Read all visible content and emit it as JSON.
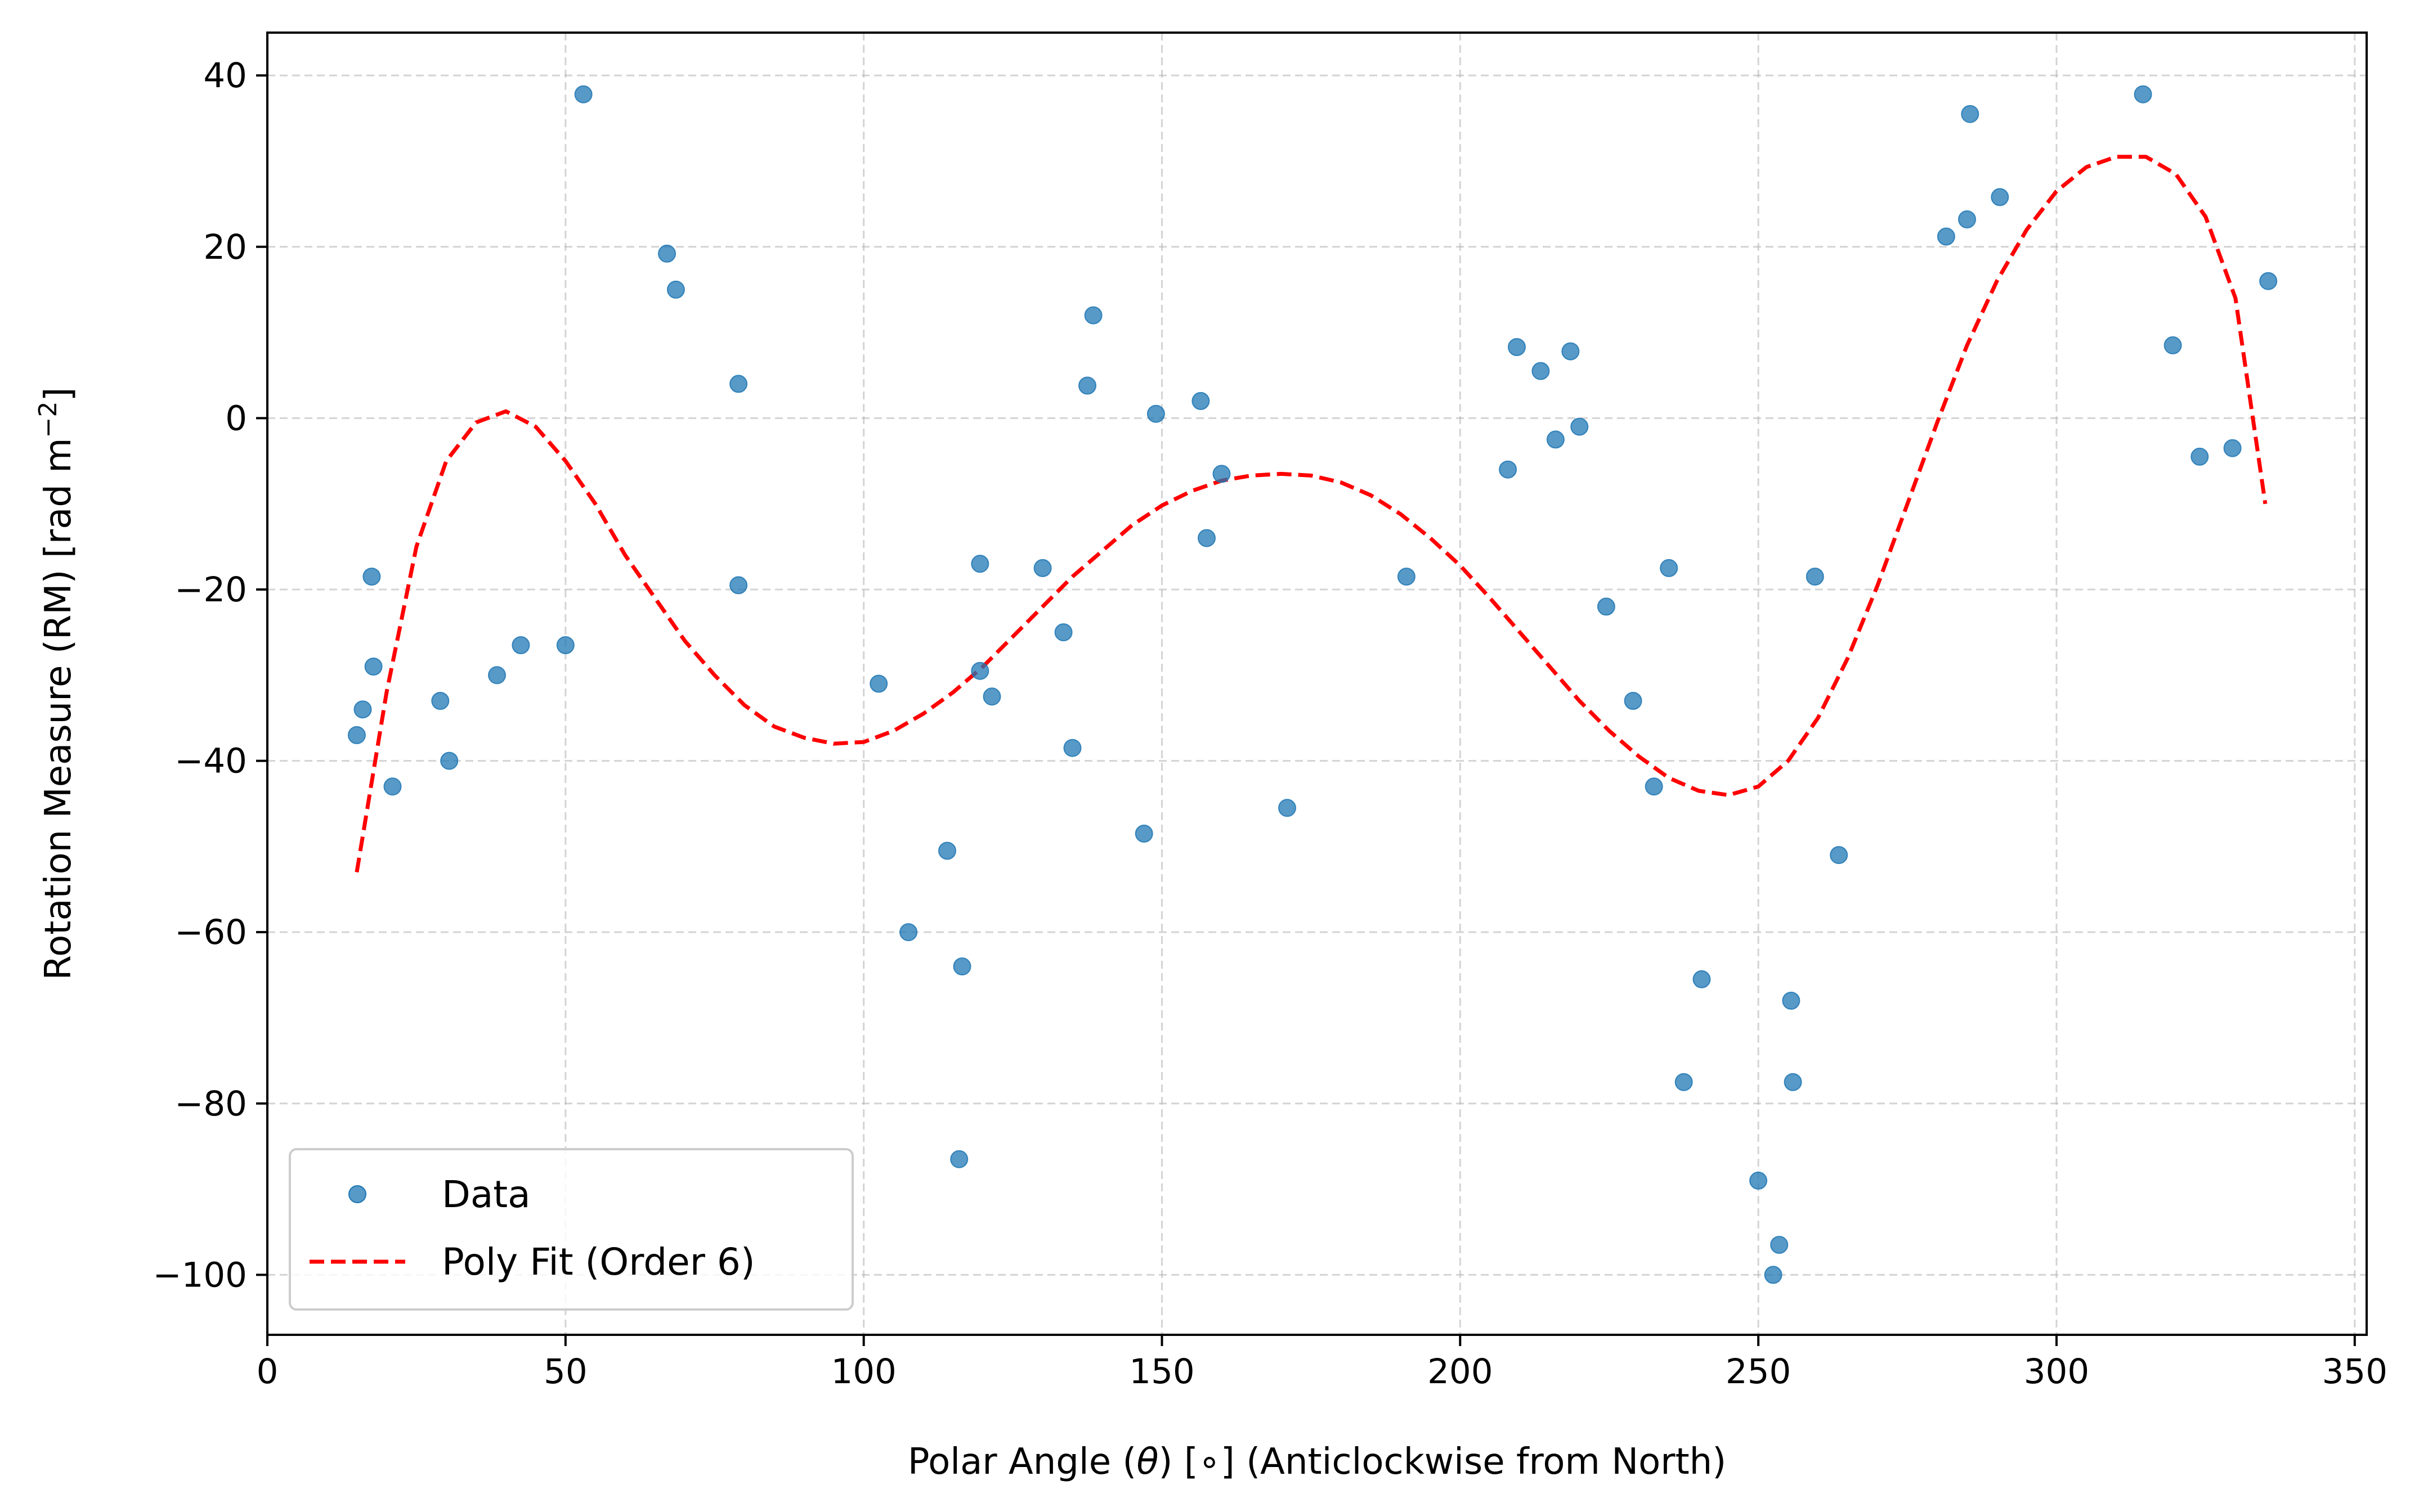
{
  "colors": {
    "data_points": "#1f77b4",
    "fit_line": "#ff0000",
    "grid": "#b0b0b0",
    "axes": "#000000",
    "background": "#ffffff"
  },
  "chart_data": {
    "type": "scatter",
    "title": "",
    "xlabel_main": "Polar Angle (",
    "xlabel_symbol": "θ",
    "xlabel_rest": ") [∘] (Anticlockwise from North)",
    "ylabel_main": "Rotation Measure (RM) [rad m",
    "ylabel_sup": "−2",
    "ylabel_end": "]",
    "xlim": [
      0,
      352
    ],
    "ylim": [
      -107,
      45
    ],
    "xticks": [
      0,
      50,
      100,
      150,
      200,
      250,
      300,
      350
    ],
    "xtick_labels": [
      "0",
      "50",
      "100",
      "150",
      "200",
      "250",
      "300",
      "350"
    ],
    "yticks": [
      40,
      20,
      0,
      -20,
      -40,
      -60,
      -80,
      -100
    ],
    "ytick_labels": [
      "40",
      "20",
      "0",
      "−20",
      "−40",
      "−60",
      "−80",
      "−100"
    ],
    "grid": true,
    "legend_position": "lower-left",
    "legend": [
      {
        "label": "Data",
        "style": "marker"
      },
      {
        "label": "Poly Fit (Order 6)",
        "style": "dashed"
      }
    ],
    "series": [
      {
        "name": "Data",
        "type": "scatter",
        "points": [
          [
            15,
            -37
          ],
          [
            16,
            -34
          ],
          [
            17.5,
            -18.5
          ],
          [
            17.8,
            -29
          ],
          [
            21,
            -43
          ],
          [
            29,
            -33
          ],
          [
            30.5,
            -40
          ],
          [
            38.5,
            -30
          ],
          [
            42.5,
            -26.5
          ],
          [
            50,
            -26.5
          ],
          [
            53,
            37.8
          ],
          [
            67,
            19.2
          ],
          [
            68.5,
            15
          ],
          [
            79,
            4
          ],
          [
            79,
            -19.5
          ],
          [
            102.5,
            -31
          ],
          [
            107.5,
            -60
          ],
          [
            114,
            -50.5
          ],
          [
            116,
            -86.5
          ],
          [
            116.5,
            -64
          ],
          [
            119.5,
            -17
          ],
          [
            119.5,
            -29.5
          ],
          [
            121.5,
            -32.5
          ],
          [
            130,
            -17.5
          ],
          [
            133.5,
            -25
          ],
          [
            135,
            -38.5
          ],
          [
            137.5,
            3.8
          ],
          [
            138.5,
            12
          ],
          [
            147,
            -48.5
          ],
          [
            149,
            0.5
          ],
          [
            156.5,
            2
          ],
          [
            157.5,
            -14
          ],
          [
            160,
            -6.5
          ],
          [
            171,
            -45.5
          ],
          [
            191,
            -18.5
          ],
          [
            208,
            -6
          ],
          [
            209.5,
            8.3
          ],
          [
            213.5,
            5.5
          ],
          [
            216,
            -2.5
          ],
          [
            218.5,
            7.8
          ],
          [
            220,
            -1
          ],
          [
            224.5,
            -22
          ],
          [
            229,
            -33
          ],
          [
            232.5,
            -43
          ],
          [
            235,
            -17.5
          ],
          [
            237.5,
            -77.5
          ],
          [
            240.5,
            -65.5
          ],
          [
            250,
            -89
          ],
          [
            252.5,
            -100
          ],
          [
            253.5,
            -96.5
          ],
          [
            255.5,
            -68
          ],
          [
            255.8,
            -77.5
          ],
          [
            259.5,
            -18.5
          ],
          [
            263.5,
            -51
          ],
          [
            281.5,
            21.2
          ],
          [
            285,
            23.2
          ],
          [
            285.5,
            35.5
          ],
          [
            290.5,
            25.8
          ],
          [
            314.5,
            37.8
          ],
          [
            319.5,
            8.5
          ],
          [
            324,
            -4.5
          ],
          [
            329.5,
            -3.5
          ],
          [
            335.5,
            16
          ]
        ]
      },
      {
        "name": "Poly Fit (Order 6)",
        "type": "line",
        "style": "dashed",
        "points": [
          [
            15,
            -53
          ],
          [
            20,
            -32
          ],
          [
            25,
            -15
          ],
          [
            30,
            -5
          ],
          [
            35,
            -0.5
          ],
          [
            40,
            0.8
          ],
          [
            45,
            -1
          ],
          [
            50,
            -5
          ],
          [
            55,
            -10
          ],
          [
            60,
            -16
          ],
          [
            65,
            -21
          ],
          [
            70,
            -26
          ],
          [
            75,
            -30
          ],
          [
            80,
            -33.5
          ],
          [
            85,
            -36
          ],
          [
            90,
            -37.3
          ],
          [
            95,
            -38
          ],
          [
            100,
            -37.8
          ],
          [
            105,
            -36.5
          ],
          [
            110,
            -34.5
          ],
          [
            115,
            -32
          ],
          [
            120,
            -29
          ],
          [
            125,
            -25.5
          ],
          [
            130,
            -22
          ],
          [
            135,
            -18.5
          ],
          [
            140,
            -15.5
          ],
          [
            145,
            -12.5
          ],
          [
            150,
            -10.2
          ],
          [
            155,
            -8.5
          ],
          [
            160,
            -7.3
          ],
          [
            165,
            -6.7
          ],
          [
            170,
            -6.5
          ],
          [
            175,
            -6.7
          ],
          [
            180,
            -7.5
          ],
          [
            185,
            -9
          ],
          [
            190,
            -11.2
          ],
          [
            195,
            -14
          ],
          [
            200,
            -17.2
          ],
          [
            205,
            -21
          ],
          [
            210,
            -25
          ],
          [
            215,
            -29
          ],
          [
            220,
            -33
          ],
          [
            225,
            -36.5
          ],
          [
            230,
            -39.5
          ],
          [
            235,
            -42
          ],
          [
            240,
            -43.5
          ],
          [
            245,
            -44
          ],
          [
            250,
            -43
          ],
          [
            255,
            -40
          ],
          [
            260,
            -35
          ],
          [
            265,
            -28
          ],
          [
            270,
            -19.5
          ],
          [
            275,
            -10
          ],
          [
            280,
            -0.5
          ],
          [
            285,
            8.5
          ],
          [
            290,
            16
          ],
          [
            295,
            22
          ],
          [
            300,
            26.5
          ],
          [
            305,
            29.3
          ],
          [
            310,
            30.5
          ],
          [
            315,
            30.5
          ],
          [
            320,
            28.5
          ],
          [
            325,
            23.5
          ],
          [
            330,
            14
          ],
          [
            335,
            -10
          ]
        ]
      }
    ]
  }
}
